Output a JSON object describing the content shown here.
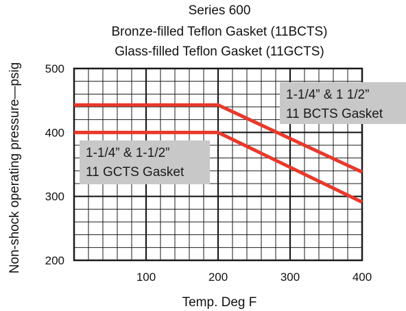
{
  "chart_data": {
    "type": "line",
    "title_lines": [
      "Series 600",
      "Bronze-filled Teflon Gasket (11BCTS)",
      "Glass-filled Teflon Gasket (11GCTS)"
    ],
    "xlabel": "Temp. Deg F",
    "ylabel": "Non-shock operating pressure—psig",
    "xlim": [
      0,
      400
    ],
    "ylim": [
      200,
      500
    ],
    "x_ticks": [
      100,
      200,
      300,
      400
    ],
    "y_ticks": [
      200,
      300,
      400,
      500
    ],
    "grid": true,
    "series": [
      {
        "x": [
          0,
          200,
          400
        ],
        "y": [
          443,
          443,
          338
        ]
      },
      {
        "x": [
          0,
          200,
          400
        ],
        "y": [
          400,
          400,
          291
        ]
      }
    ],
    "annotations": [
      {
        "lines": [
          "1-1/4”  &  1 1/2”",
          "11 BCTS Gasket"
        ]
      },
      {
        "lines": [
          "1-1/4”  &  1-1/2”",
          "11 GCTS Gasket"
        ]
      }
    ],
    "colors": {
      "series": "#e8392b",
      "annotation_bg": "#c8c8c8",
      "grid": "#1a1a1a"
    }
  }
}
